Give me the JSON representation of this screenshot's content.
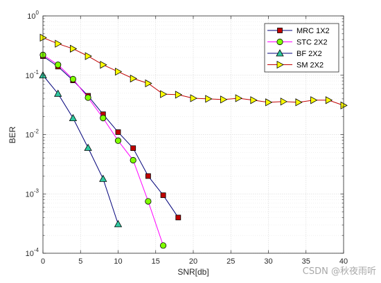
{
  "chart_data": {
    "type": "line",
    "xlabel": "SNR[db]",
    "ylabel": "BER",
    "xlim": [
      0,
      40
    ],
    "ylim": [
      0.0001,
      1
    ],
    "yscale": "log",
    "grid": true,
    "legend_position": "top-right",
    "x_ticks": [
      "0",
      "5",
      "10",
      "15",
      "20",
      "25",
      "30",
      "35",
      "40"
    ],
    "y_tick_bases": [
      "10",
      "10",
      "10",
      "10",
      "10"
    ],
    "y_tick_exps": [
      "-4",
      "-3",
      "-2",
      "-1",
      "0"
    ],
    "series": [
      {
        "name": "MRC 1X2",
        "line_color": "#00007a",
        "marker": "square",
        "marker_fill": "#c00000",
        "x": [
          0,
          2,
          4,
          6,
          8,
          10,
          12,
          14,
          16,
          18
        ],
        "y": [
          0.21,
          0.14,
          0.082,
          0.045,
          0.022,
          0.011,
          0.0059,
          0.002,
          0.00095,
          0.0004
        ]
      },
      {
        "name": "STC 2X2",
        "line_color": "#ff00ff",
        "marker": "circle",
        "marker_fill": "#7fff00",
        "x": [
          0,
          2,
          4,
          6,
          8,
          10,
          12,
          14,
          16
        ],
        "y": [
          0.22,
          0.15,
          0.086,
          0.042,
          0.019,
          0.0079,
          0.0037,
          0.00075,
          0.000135
        ]
      },
      {
        "name": "BF 2X2",
        "line_color": "#00007a",
        "marker": "triangle-up",
        "marker_fill": "#2fc8a0",
        "x": [
          0,
          2,
          4,
          6,
          8,
          10
        ],
        "y": [
          0.1,
          0.049,
          0.019,
          0.006,
          0.0018,
          0.00031
        ]
      },
      {
        "name": "SM 2X2",
        "line_color": "#c00000",
        "marker": "triangle-right",
        "marker_fill": "#ffff00",
        "x": [
          0,
          2,
          4,
          6,
          8,
          10,
          12,
          14,
          16,
          18,
          20,
          22,
          24,
          26,
          28,
          30,
          32,
          34,
          36,
          38,
          40
        ],
        "y": [
          0.43,
          0.34,
          0.28,
          0.21,
          0.15,
          0.115,
          0.088,
          0.073,
          0.048,
          0.047,
          0.041,
          0.04,
          0.039,
          0.041,
          0.038,
          0.035,
          0.036,
          0.035,
          0.038,
          0.038,
          0.031
        ]
      }
    ]
  },
  "watermark": "CSDN @秋夜雨听"
}
